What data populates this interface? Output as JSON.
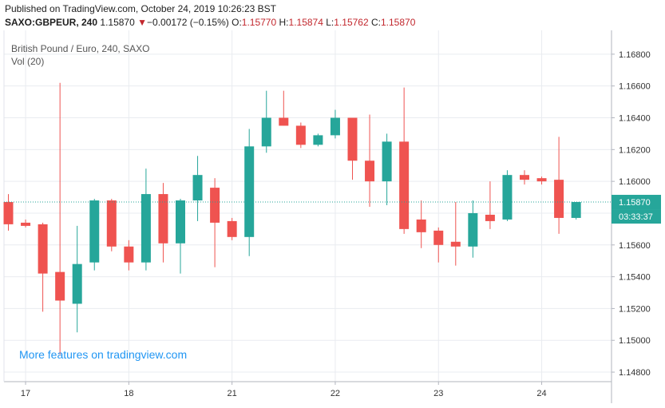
{
  "header": {
    "published": "Published on TradingView.com, October 24, 2019 10:26:23 BST",
    "symbol": "SAXO:GBPEUR, 240",
    "last": "1.15870",
    "arrow": "▼",
    "change": "−0.00172 (−0.15%)",
    "o_label": "O:",
    "o": "1.15770",
    "h_label": "H:",
    "h": "1.15874",
    "l_label": "L:",
    "l": "1.15762",
    "c_label": "C:",
    "c": "1.15870"
  },
  "pane": {
    "title": "British Pound / Euro, 240, SAXO",
    "vol": "Vol (20)",
    "promo": "More features on tradingview.com"
  },
  "colors": {
    "up": "#26a69a",
    "down": "#ef5350",
    "grid": "#e9ecf0",
    "price_line": "#26a69a",
    "countdown_bg": "#26a69a"
  },
  "chart_data": {
    "type": "candlestick",
    "ylim": [
      1.1474,
      1.1695
    ],
    "y_ticks": [
      "1.14800",
      "1.15000",
      "1.15200",
      "1.15400",
      "1.15600",
      "1.15800",
      "1.16000",
      "1.16200",
      "1.16400",
      "1.16600",
      "1.16800"
    ],
    "x_ticks": [
      {
        "label": "17",
        "index": 1
      },
      {
        "label": "18",
        "index": 7
      },
      {
        "label": "21",
        "index": 13
      },
      {
        "label": "22",
        "index": 19
      },
      {
        "label": "23",
        "index": 25
      },
      {
        "label": "24",
        "index": 31
      }
    ],
    "current_price": "1.15870",
    "countdown": "03:33:37",
    "candles": [
      {
        "o": 1.1587,
        "h": 1.1592,
        "l": 1.1569,
        "c": 1.1573
      },
      {
        "o": 1.1574,
        "h": 1.1576,
        "l": 1.1571,
        "c": 1.1572
      },
      {
        "o": 1.1573,
        "h": 1.1574,
        "l": 1.1518,
        "c": 1.1542
      },
      {
        "o": 1.1543,
        "h": 1.1662,
        "l": 1.1491,
        "c": 1.1525
      },
      {
        "o": 1.1523,
        "h": 1.1572,
        "l": 1.1505,
        "c": 1.1548
      },
      {
        "o": 1.1549,
        "h": 1.1589,
        "l": 1.1544,
        "c": 1.1588
      },
      {
        "o": 1.1588,
        "h": 1.1589,
        "l": 1.1556,
        "c": 1.1559
      },
      {
        "o": 1.1559,
        "h": 1.1563,
        "l": 1.1544,
        "c": 1.1549
      },
      {
        "o": 1.1549,
        "h": 1.1608,
        "l": 1.1544,
        "c": 1.1592
      },
      {
        "o": 1.1592,
        "h": 1.1599,
        "l": 1.1549,
        "c": 1.1561
      },
      {
        "o": 1.1561,
        "h": 1.1589,
        "l": 1.1542,
        "c": 1.1588
      },
      {
        "o": 1.1588,
        "h": 1.1616,
        "l": 1.1575,
        "c": 1.1604
      },
      {
        "o": 1.1596,
        "h": 1.1602,
        "l": 1.1546,
        "c": 1.1574
      },
      {
        "o": 1.1575,
        "h": 1.1577,
        "l": 1.1563,
        "c": 1.1565
      },
      {
        "o": 1.1565,
        "h": 1.1633,
        "l": 1.1553,
        "c": 1.1622
      },
      {
        "o": 1.1622,
        "h": 1.1657,
        "l": 1.1618,
        "c": 1.164
      },
      {
        "o": 1.164,
        "h": 1.1657,
        "l": 1.1635,
        "c": 1.1635
      },
      {
        "o": 1.1635,
        "h": 1.1637,
        "l": 1.1621,
        "c": 1.1623
      },
      {
        "o": 1.1623,
        "h": 1.163,
        "l": 1.1622,
        "c": 1.1629
      },
      {
        "o": 1.1629,
        "h": 1.1645,
        "l": 1.1627,
        "c": 1.164
      },
      {
        "o": 1.164,
        "h": 1.164,
        "l": 1.1601,
        "c": 1.1613
      },
      {
        "o": 1.1613,
        "h": 1.1642,
        "l": 1.1584,
        "c": 1.16
      },
      {
        "o": 1.16,
        "h": 1.163,
        "l": 1.1585,
        "c": 1.1625
      },
      {
        "o": 1.1625,
        "h": 1.1659,
        "l": 1.1567,
        "c": 1.157
      },
      {
        "o": 1.1576,
        "h": 1.1588,
        "l": 1.1558,
        "c": 1.1568
      },
      {
        "o": 1.1569,
        "h": 1.1571,
        "l": 1.1549,
        "c": 1.156
      },
      {
        "o": 1.1562,
        "h": 1.1587,
        "l": 1.1547,
        "c": 1.1559
      },
      {
        "o": 1.1559,
        "h": 1.1588,
        "l": 1.1552,
        "c": 1.158
      },
      {
        "o": 1.1579,
        "h": 1.16,
        "l": 1.157,
        "c": 1.1575
      },
      {
        "o": 1.1576,
        "h": 1.1607,
        "l": 1.1575,
        "c": 1.1604
      },
      {
        "o": 1.1604,
        "h": 1.1607,
        "l": 1.1598,
        "c": 1.1601
      },
      {
        "o": 1.1602,
        "h": 1.1603,
        "l": 1.1598,
        "c": 1.16
      },
      {
        "o": 1.1601,
        "h": 1.1628,
        "l": 1.1567,
        "c": 1.1577
      },
      {
        "o": 1.1577,
        "h": 1.1587,
        "l": 1.1576,
        "c": 1.1587
      }
    ]
  }
}
